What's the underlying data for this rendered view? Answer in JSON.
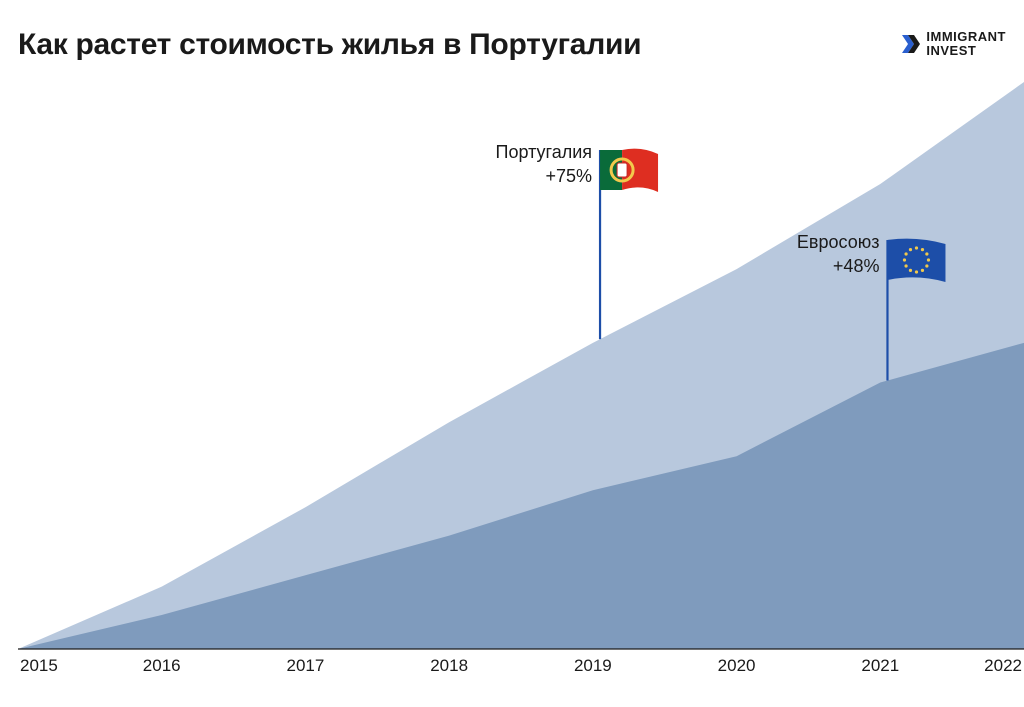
{
  "title": "Как растет стоимость жилья в Португалии",
  "brand": {
    "line1": "IMMIGRANT",
    "line2": "INVEST",
    "accent": "#2a5fcf"
  },
  "chart": {
    "type": "area",
    "background_color": "#ffffff",
    "x_years": [
      2015,
      2016,
      2017,
      2018,
      2019,
      2020,
      2021,
      2022
    ],
    "x_labels": [
      "2015",
      "2016",
      "2017",
      "2018",
      "2019",
      "2020",
      "2021",
      "2022"
    ],
    "y_range": [
      0,
      100
    ],
    "series": [
      {
        "name": "Португалия",
        "delta_label": "+75%",
        "fill": "#b8c8dd",
        "stroke": "#b8c8dd",
        "values": [
          0,
          11,
          25,
          40,
          54,
          67,
          82,
          100
        ],
        "flag": {
          "pole_x_year": 2019.05,
          "pole_color": "#1d4ea8",
          "body_fill_left": "#0a6b3a",
          "body_fill_right": "#de2e21",
          "emblem_ring": "#f2c94c",
          "emblem_center": "#ffffff"
        }
      },
      {
        "name": "Евросоюз",
        "delta_label": "+48%",
        "fill": "#7f9bbd",
        "stroke": "#7f9bbd",
        "values": [
          0,
          6,
          13,
          20,
          28,
          34,
          47,
          54
        ],
        "flag": {
          "pole_x_year": 2021.05,
          "pole_color": "#1d4ea8",
          "body_fill": "#1d4ea8",
          "stars": "#f2c94c"
        }
      }
    ],
    "axis": {
      "line_color": "#1a1a1a",
      "label_fontsize": 17
    }
  }
}
